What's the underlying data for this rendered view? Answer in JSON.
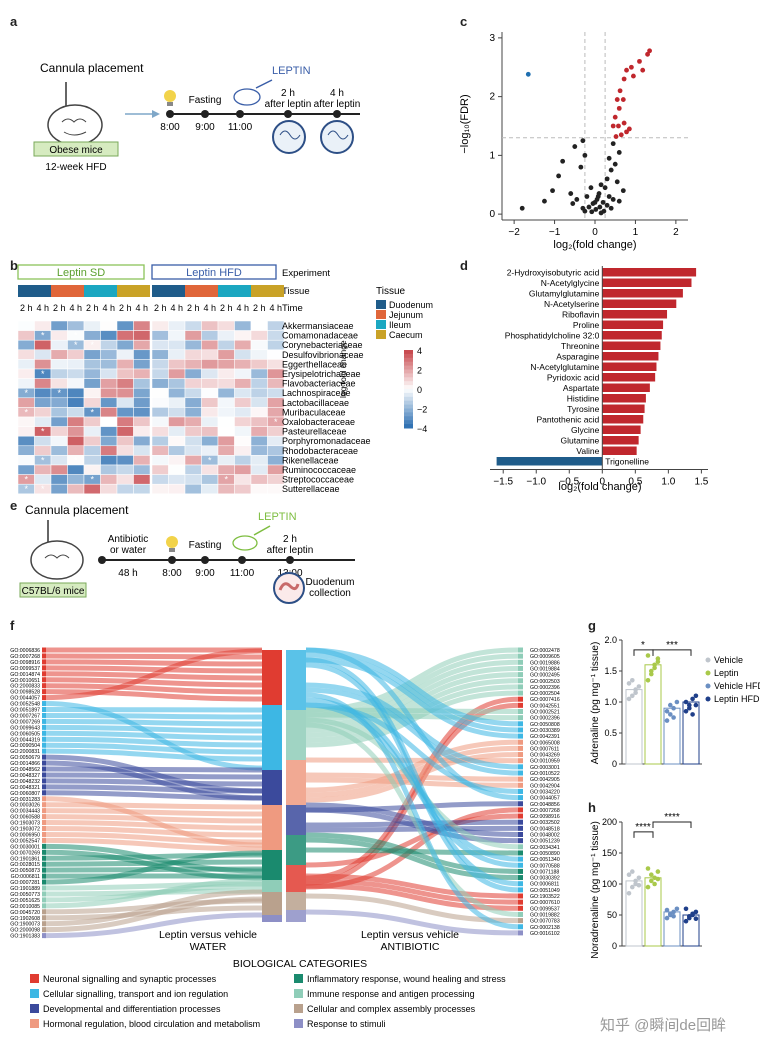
{
  "panels": {
    "a": "a",
    "b": "b",
    "c": "c",
    "d": "d",
    "e": "e",
    "f": "f",
    "g": "g",
    "h": "h"
  },
  "panel_a": {
    "cannula": "Cannula placement",
    "mice": "Obese mice",
    "diet": "12-week HFD",
    "leptin": "LEPTIN",
    "fasting": "Fasting",
    "times": [
      "8:00",
      "9:00",
      "11:00"
    ],
    "after2": [
      "2 h",
      "after leptin"
    ],
    "after4": [
      "4 h",
      "after leptin"
    ]
  },
  "panel_b": {
    "leptin_sd": "Leptin SD",
    "leptin_hfd": "Leptin HFD",
    "experiment": "Experiment",
    "tissue": "Tissue",
    "time": "Time",
    "time_labels": [
      "2 h",
      "4 h",
      "2 h",
      "4 h",
      "2 h",
      "4 h",
      "2 h",
      "4 h"
    ],
    "families": [
      "Akkermansiaceae",
      "Comamonadaceae",
      "Corynebacteriaceae",
      "Desulfovibrionaceae",
      "Eggerthellaceae",
      "Erysipelotrichaceae",
      "Flavobacteriaceae",
      "Lachnospiraceae",
      "Lactobacillaceae",
      "Muribaculaceae",
      "Oxalobacteraceae",
      "Pasteurellaceae",
      "Porphyromonadaceae",
      "Rhodobacteraceae",
      "Rikenellaceae",
      "Ruminococcaceae",
      "Streptococcaceae",
      "Sutterellaceae"
    ],
    "legend_title": "Tissue",
    "tissues": [
      "Duodenum",
      "Jejunum",
      "Ileum",
      "Caecum"
    ],
    "tissue_colors": [
      "#1f5c8a",
      "#e0663a",
      "#1ba7c1",
      "#c9a227"
    ],
    "colorbar_label": "log fold change",
    "colorbar_ticks": [
      "4",
      "2",
      "0",
      "−2",
      "−4"
    ],
    "star": "*"
  },
  "panel_c": {
    "xlabel": "log₂(fold change)",
    "ylabel": "−log₁₀(FDR)",
    "xticks": [
      "−2",
      "−1",
      "0",
      "1",
      "2"
    ],
    "yticks": [
      "0",
      "1",
      "2",
      "3"
    ]
  },
  "panel_d": {
    "xlabel": "log₂(fold change)",
    "xticks": [
      "−1.5",
      "−1.0",
      "−0.5",
      "0",
      "0.5",
      "1.0",
      "1.5"
    ]
  },
  "panel_e": {
    "cannula": "Cannula placement",
    "antibiotic": [
      "Antibiotic",
      "or water"
    ],
    "duration": "48 h",
    "mice": "C57BL/6 mice",
    "fasting": "Fasting",
    "leptin": "LEPTIN",
    "after2": [
      "2 h",
      "after leptin"
    ],
    "times": [
      "8:00",
      "9:00",
      "11:00",
      "13:00"
    ],
    "collection": [
      "Duodenum",
      "collection"
    ]
  },
  "panel_f": {
    "left_title": [
      "Leptin versus vehicle",
      "WATER"
    ],
    "right_title": [
      "Leptin versus vehicle",
      "ANTIBIOTIC"
    ],
    "categories_title": "BIOLOGICAL CATEGORIES",
    "categories": [
      {
        "name": "Neuronal signalling and synaptic processes",
        "color": "#e03c31"
      },
      {
        "name": "Cellular signalling, transport and ion regulation",
        "color": "#3db7e4"
      },
      {
        "name": "Developmental and differentiation processes",
        "color": "#3b4a9c"
      },
      {
        "name": "Hormonal regulation, blood circulation and metabolism",
        "color": "#ef9a80"
      },
      {
        "name": "Inflammatory response, wound healing and stress",
        "color": "#1a8a6e"
      },
      {
        "name": "Immune response and antigen processing",
        "color": "#8fcdb8"
      },
      {
        "name": "Cellular and complex assembly processes",
        "color": "#b9a18d"
      },
      {
        "name": "Response to stimuli",
        "color": "#8d8fc6"
      }
    ],
    "left_terms": [
      "GO:0006836",
      "GO:0007268",
      "GO:0098916",
      "GO:0099537",
      "GO:0014874",
      "GO:0010651",
      "GO:2000833",
      "GO:0098528",
      "GO:0044057",
      "GO:0052548",
      "GO:0051897",
      "GO:0007267",
      "GO:0007269",
      "GO:0099643",
      "GO:0060505",
      "GO:0044319",
      "GO:0090504",
      "GO:2000831",
      "GO:0050679",
      "GO:0014866",
      "GO:0048562",
      "GO:0048327",
      "GO:0048232",
      "GO:0048321",
      "GO:0060807",
      "GO:0031283",
      "GO:0003026",
      "GO:0034443",
      "GO:0060588",
      "GO:1903073",
      "GO:1903072",
      "GO:0006950",
      "GO:0052547",
      "GO:0030001",
      "GO:0070269",
      "GO:1901861",
      "GO:0028015",
      "GO:0050873",
      "GO:0006811",
      "GO:0007281",
      "GO:1901889",
      "GO:0050773",
      "GO:0051625",
      "GO:0010085",
      "GO:0045720",
      "GO:1902608",
      "GO:1900073",
      "GO:2000098",
      "GO:1901383"
    ],
    "right_terms": [
      "GO:0002478",
      "GO:0009605",
      "GO:0019886",
      "GO:0019884",
      "GO:0002495",
      "GO:0002503",
      "GO:0002396",
      "GO:0002504",
      "GO:0007416",
      "GO:0042551",
      "GO:0002521",
      "GO:0002396",
      "GO:0050808",
      "GO:0030389",
      "GO:0042391",
      "GO:0065008",
      "GO:0007611",
      "GO:0043269",
      "GO:0010959",
      "GO:0003001",
      "GO:0010522",
      "GO:0042905",
      "GO:0042904",
      "GO:0034220",
      "GO:0044057",
      "GO:0048856",
      "GO:0007268",
      "GO:0098916",
      "GO:0032502",
      "GO:0048518",
      "GO:0048002",
      "GO:0051239",
      "GO:0034341",
      "GO:0050890",
      "GO:0051340",
      "GO:0070588",
      "GO:0071188",
      "GO:0030392",
      "GO:0006811",
      "GO:0051049",
      "GO:1903522",
      "GO:0007610",
      "GO:0099537",
      "GO:0019882",
      "GO:0070783",
      "GO:0002138",
      "GO:0016102"
    ]
  },
  "panel_g": {
    "ylabel": "Adrenaline (pg mg⁻¹ tissue)",
    "yticks": [
      "0",
      "0.5",
      "1.0",
      "1.5",
      "2.0"
    ],
    "sig": [
      "*",
      "***"
    ],
    "legend": [
      "Vehicle",
      "Leptin",
      "Vehicle HFD",
      "Leptin HFD"
    ],
    "colors": [
      "#bfc5cc",
      "#a9c94a",
      "#6b8fc2",
      "#1f3f8a"
    ]
  },
  "panel_h": {
    "ylabel": "Noradrenaline (pg mg⁻¹ tissue)",
    "yticks": [
      "0",
      "50",
      "100",
      "150",
      "200"
    ],
    "sig": [
      "****",
      "****"
    ]
  },
  "watermark": "知乎 @瞬间de回眸",
  "chart_data": [
    {
      "type": "scatter",
      "panel": "c",
      "xlabel": "log₂(fold change)",
      "ylabel": "−log₁₀(FDR)",
      "xlim": [
        -2.3,
        2.3
      ],
      "ylim": [
        -0.1,
        3.1
      ],
      "series": [
        {
          "color": "#c0272d",
          "points": [
            [
              1.35,
              2.78
            ],
            [
              1.3,
              2.72
            ],
            [
              1.1,
              2.6
            ],
            [
              1.18,
              2.45
            ],
            [
              0.9,
              2.5
            ],
            [
              0.78,
              2.45
            ],
            [
              0.95,
              2.35
            ],
            [
              0.72,
              2.3
            ],
            [
              0.62,
              2.1
            ],
            [
              0.7,
              1.95
            ],
            [
              0.55,
              1.95
            ],
            [
              0.6,
              1.8
            ],
            [
              0.5,
              1.65
            ],
            [
              0.72,
              1.55
            ],
            [
              0.58,
              1.5
            ],
            [
              0.45,
              1.5
            ],
            [
              0.78,
              1.4
            ],
            [
              0.65,
              1.35
            ],
            [
              0.52,
              1.32
            ],
            [
              0.85,
              1.45
            ]
          ]
        },
        {
          "color": "#1f6fb0",
          "points": [
            [
              -1.65,
              2.38
            ]
          ]
        },
        {
          "color": "#222222",
          "points": [
            [
              -0.3,
              1.25
            ],
            [
              -0.5,
              1.15
            ],
            [
              -0.25,
              1.0
            ],
            [
              0.45,
              1.2
            ],
            [
              0.6,
              1.05
            ],
            [
              0.35,
              0.95
            ],
            [
              0.5,
              0.85
            ],
            [
              0.4,
              0.75
            ],
            [
              -0.8,
              0.9
            ],
            [
              -0.35,
              0.8
            ],
            [
              -0.9,
              0.65
            ],
            [
              0.3,
              0.6
            ],
            [
              0.55,
              0.55
            ],
            [
              0.15,
              0.5
            ],
            [
              -0.1,
              0.45
            ],
            [
              0.25,
              0.45
            ],
            [
              0.7,
              0.4
            ],
            [
              -1.05,
              0.4
            ],
            [
              -0.6,
              0.35
            ],
            [
              0.1,
              0.35
            ],
            [
              0.35,
              0.3
            ],
            [
              -0.2,
              0.3
            ],
            [
              0.05,
              0.25
            ],
            [
              0.45,
              0.25
            ],
            [
              -0.45,
              0.25
            ],
            [
              0.2,
              0.2
            ],
            [
              -0.05,
              0.18
            ],
            [
              0.3,
              0.15
            ],
            [
              0.12,
              0.12
            ],
            [
              -0.15,
              0.12
            ],
            [
              0.4,
              0.1
            ],
            [
              0.02,
              0.08
            ],
            [
              -0.3,
              0.1
            ],
            [
              0.22,
              0.05
            ],
            [
              -0.08,
              0.04
            ],
            [
              0.15,
              0.02
            ],
            [
              -1.8,
              0.1
            ],
            [
              -1.25,
              0.22
            ],
            [
              0.0,
              0.2
            ],
            [
              -0.55,
              0.18
            ],
            [
              0.6,
              0.22
            ],
            [
              0.08,
              0.3
            ],
            [
              -0.25,
              0.05
            ]
          ]
        }
      ]
    },
    {
      "type": "bar",
      "panel": "d",
      "orientation": "horizontal",
      "categories": [
        "2-Hydroxyisobutyric acid",
        "N-Acetylglycine",
        "Glutamylglutamine",
        "N-Acetylserine",
        "Riboflavin",
        "Proline",
        "Phosphatidylcholine 32:0",
        "Threonine",
        "Asparagine",
        "N-Acetylglutamine",
        "Pyridoxic acid",
        "Aspartate",
        "Histidine",
        "Tyrosine",
        "Pantothenic acid",
        "Glycine",
        "Glutamine",
        "Valine",
        "Trigonelline"
      ],
      "values": [
        1.42,
        1.35,
        1.22,
        1.12,
        0.98,
        0.92,
        0.9,
        0.88,
        0.85,
        0.82,
        0.8,
        0.72,
        0.66,
        0.64,
        0.62,
        0.58,
        0.55,
        0.52,
        -1.6
      ],
      "colors_pos": "#c0272d",
      "colors_neg": "#1f5c8a",
      "xlabel": "log₂(fold change)",
      "xlim": [
        -1.7,
        1.6
      ]
    },
    {
      "type": "bar",
      "panel": "g",
      "categories": [
        "Vehicle",
        "Leptin",
        "Vehicle HFD",
        "Leptin HFD"
      ],
      "values": [
        1.2,
        1.6,
        0.9,
        1.0
      ],
      "ylim": [
        0,
        2.0
      ],
      "points": [
        [
          1.05,
          1.1,
          1.2,
          1.25,
          1.3,
          1.35,
          1.15
        ],
        [
          1.35,
          1.45,
          1.6,
          1.7,
          1.75,
          1.5,
          1.55,
          1.65
        ],
        [
          0.7,
          0.8,
          0.9,
          1.0,
          0.85,
          0.95,
          0.75
        ],
        [
          0.85,
          0.95,
          1.05,
          1.1,
          1.0,
          0.9,
          0.8,
          0.95
        ]
      ]
    },
    {
      "type": "bar",
      "panel": "h",
      "categories": [
        "Vehicle",
        "Leptin",
        "Vehicle HFD",
        "Leptin HFD"
      ],
      "values": [
        105,
        110,
        55,
        50
      ],
      "ylim": [
        0,
        200
      ],
      "points": [
        [
          85,
          95,
          100,
          110,
          115,
          120,
          105,
          98
        ],
        [
          95,
          105,
          110,
          120,
          125,
          115,
          100,
          108
        ],
        [
          45,
          50,
          55,
          60,
          58,
          52,
          48
        ],
        [
          40,
          45,
          50,
          55,
          60,
          48,
          52,
          44
        ]
      ]
    }
  ]
}
